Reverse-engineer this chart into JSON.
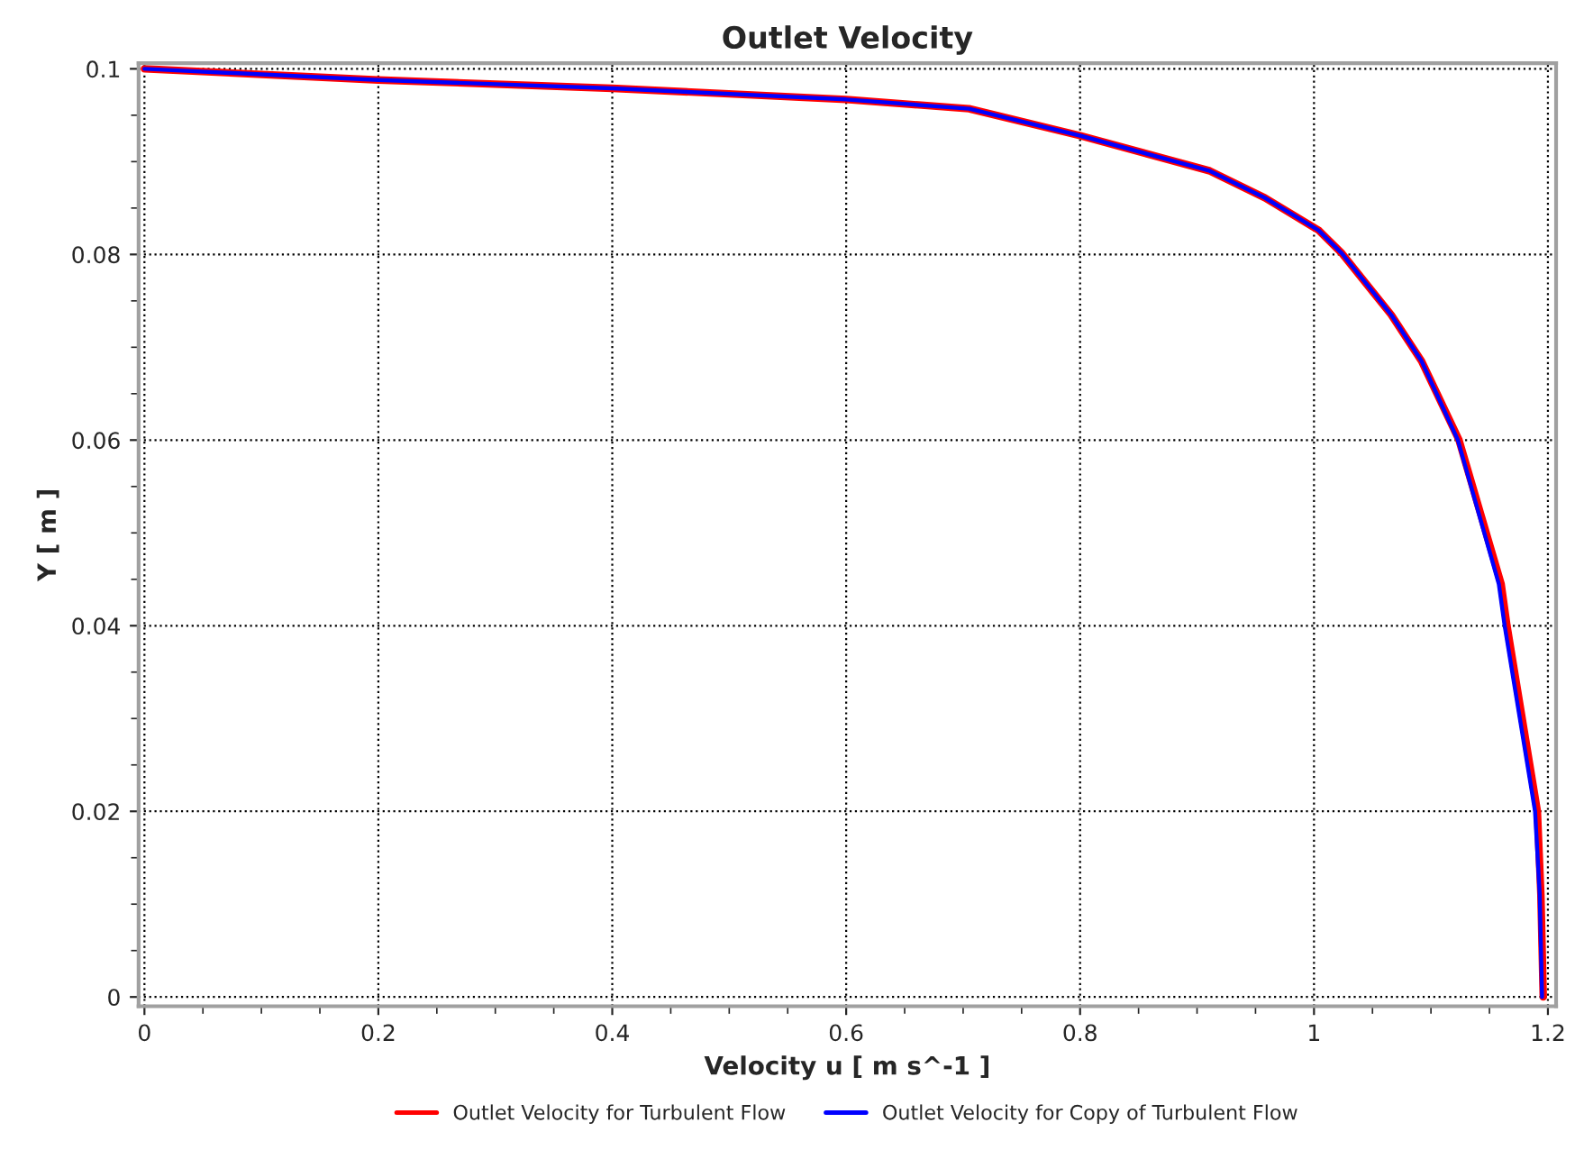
{
  "chart_data": {
    "type": "line",
    "title": "Outlet Velocity",
    "xlabel": "Velocity u [ m s^-1 ]",
    "ylabel": "Y [ m ]",
    "series": [
      {
        "name": "Outlet Velocity for Turbulent Flow",
        "color": "#ff0000",
        "x": [
          0,
          0.2,
          0.4,
          0.6,
          0.705,
          0.8,
          0.911,
          0.958,
          1.004,
          1.024,
          1.066,
          1.092,
          1.124,
          1.16,
          1.165,
          1.191,
          1.194,
          1.196
        ],
        "values": [
          0.1,
          0.0988,
          0.0979,
          0.0967,
          0.0957,
          0.0928,
          0.089,
          0.0861,
          0.0826,
          0.0801,
          0.0735,
          0.0685,
          0.06,
          0.0445,
          0.04,
          0.02,
          0.011,
          0
        ]
      },
      {
        "name": "Outlet Velocity for Copy of Turbulent Flow",
        "color": "#0000ff",
        "x": [
          0,
          0.2,
          0.4,
          0.6,
          0.705,
          0.8,
          0.911,
          0.958,
          1.004,
          1.024,
          1.066,
          1.092,
          1.123,
          1.158,
          1.163,
          1.189,
          1.193,
          1.195
        ],
        "values": [
          0.1,
          0.0988,
          0.0979,
          0.0967,
          0.0957,
          0.0928,
          0.089,
          0.0861,
          0.0826,
          0.0801,
          0.0735,
          0.0685,
          0.06,
          0.0445,
          0.04,
          0.02,
          0.011,
          0
        ]
      }
    ],
    "xlim": [
      -0.005,
      1.207
    ],
    "ylim": [
      -0.001,
      0.1006
    ],
    "xticks": [
      0,
      0.2,
      0.4,
      0.6,
      0.8,
      1,
      1.2
    ],
    "yticks": [
      0,
      0.02,
      0.04,
      0.06,
      0.08,
      0.1
    ],
    "grid": true,
    "legend": "bottom",
    "marker": "none",
    "line_style": "solid"
  }
}
